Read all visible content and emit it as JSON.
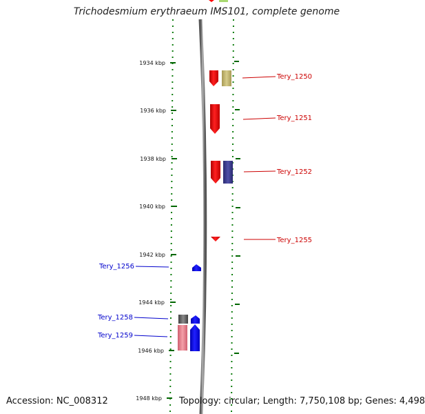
{
  "header": {
    "title": "Trichodesmium erythraeum IMS101, complete genome"
  },
  "footer": {
    "accession": "Accession: NC_008312",
    "topology": "Topology: circular; Length: 7,750,108 bp; Genes: 4,498"
  },
  "ticks": [
    {
      "label": "1934 kbp",
      "kbp": 1934
    },
    {
      "label": "1936 kbp",
      "kbp": 1936
    },
    {
      "label": "1938 kbp",
      "kbp": 1938
    },
    {
      "label": "1940 kbp",
      "kbp": 1940
    },
    {
      "label": "1942 kbp",
      "kbp": 1942
    },
    {
      "label": "1944 kbp",
      "kbp": 1944
    },
    {
      "label": "1946 kbp",
      "kbp": 1946
    },
    {
      "label": "1948 kbp",
      "kbp": 1948
    }
  ],
  "genes": [
    {
      "label": "Tery_1250",
      "strand": "forward",
      "color": "#cc0000"
    },
    {
      "label": "Tery_1251",
      "strand": "forward",
      "color": "#cc0000"
    },
    {
      "label": "Tery_1252",
      "strand": "forward",
      "color": "#cc0000"
    },
    {
      "label": "Tery_1255",
      "strand": "forward",
      "color": "#cc0000"
    },
    {
      "label": "Tery_1256",
      "strand": "reverse",
      "color": "#0000cc"
    },
    {
      "label": "Tery_1258",
      "strand": "reverse",
      "color": "#0000cc"
    },
    {
      "label": "Tery_1259",
      "strand": "reverse",
      "color": "#0000cc"
    }
  ],
  "colors": {
    "forward_cds": "#ff0000",
    "reverse_cds": "#0000ff",
    "forward_label": "#cc0000",
    "reverse_label": "#0000cc",
    "tick": "#006600",
    "backbone": "#8a8a8a"
  }
}
